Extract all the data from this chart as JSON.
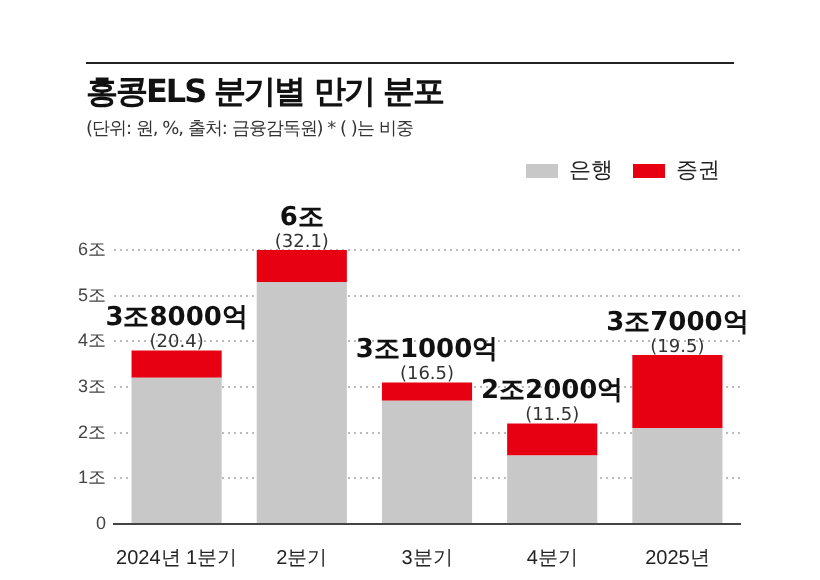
{
  "chart_data": {
    "type": "bar",
    "title": "홍콩ELS 분기별 만기 분포",
    "subtitle": "(단위: 원, %, 출처: 금융감독원)  * ( )는 비중",
    "categories": [
      "2024년 1분기",
      "2분기",
      "3분기",
      "4분기",
      "2025년"
    ],
    "stacked": true,
    "series": [
      {
        "name": "은행",
        "color": "#c8c8c8",
        "values": [
          3.2,
          5.3,
          2.7,
          1.5,
          2.1
        ]
      },
      {
        "name": "증권",
        "color": "#e60012",
        "values": [
          0.6,
          0.7,
          0.4,
          0.7,
          1.6
        ]
      }
    ],
    "ylim": [
      0,
      6
    ],
    "yticks": [
      {
        "value": 0,
        "label": "0"
      },
      {
        "value": 1,
        "label": "1조"
      },
      {
        "value": 2,
        "label": "2조"
      },
      {
        "value": 3,
        "label": "3조"
      },
      {
        "value": 4,
        "label": "4조"
      },
      {
        "value": 5,
        "label": "5조"
      },
      {
        "value": 6,
        "label": "6조"
      }
    ],
    "grid": "y",
    "legend": "top right",
    "totals": [
      "3조8000억",
      "6조",
      "3조1000억",
      "2조2000억",
      "3조7000억"
    ],
    "annotations": [
      {
        "text": "(20.4)",
        "x": "2024년 1분기",
        "y": 3.8
      },
      {
        "text": "(32.1)",
        "x": "2분기",
        "y": 6
      },
      {
        "text": "(16.5)",
        "x": "3분기",
        "y": 3.1
      },
      {
        "text": "(11.5)",
        "x": "4분기",
        "y": 2.2
      },
      {
        "text": "(19.5)",
        "x": "2025년",
        "y": 3.7
      }
    ]
  }
}
